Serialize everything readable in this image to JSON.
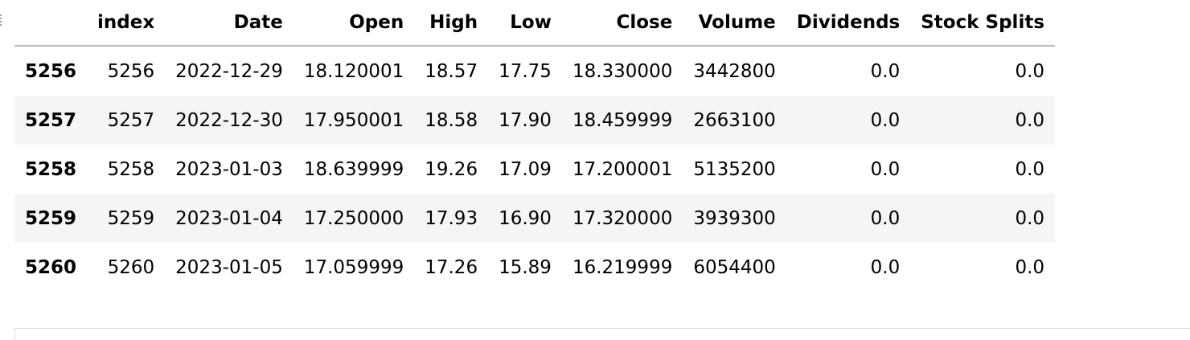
{
  "table": {
    "columns": [
      "",
      "index",
      "Date",
      "Open",
      "High",
      "Low",
      "Close",
      "Volume",
      "Dividends",
      "Stock Splits"
    ],
    "rows": [
      {
        "label": "5256",
        "cells": [
          "5256",
          "2022-12-29",
          "18.120001",
          "18.57",
          "17.75",
          "18.330000",
          "3442800",
          "0.0",
          "0.0"
        ]
      },
      {
        "label": "5257",
        "cells": [
          "5257",
          "2022-12-30",
          "17.950001",
          "18.58",
          "17.90",
          "18.459999",
          "2663100",
          "0.0",
          "0.0"
        ]
      },
      {
        "label": "5258",
        "cells": [
          "5258",
          "2023-01-03",
          "18.639999",
          "19.26",
          "17.09",
          "17.200001",
          "5135200",
          "0.0",
          "0.0"
        ]
      },
      {
        "label": "5259",
        "cells": [
          "5259",
          "2023-01-04",
          "17.250000",
          "17.93",
          "16.90",
          "17.320000",
          "3939300",
          "0.0",
          "0.0"
        ]
      },
      {
        "label": "5260",
        "cells": [
          "5260",
          "2023-01-05",
          "17.059999",
          "17.26",
          "15.89",
          "16.219999",
          "6054400",
          "0.0",
          "0.0"
        ]
      }
    ]
  }
}
